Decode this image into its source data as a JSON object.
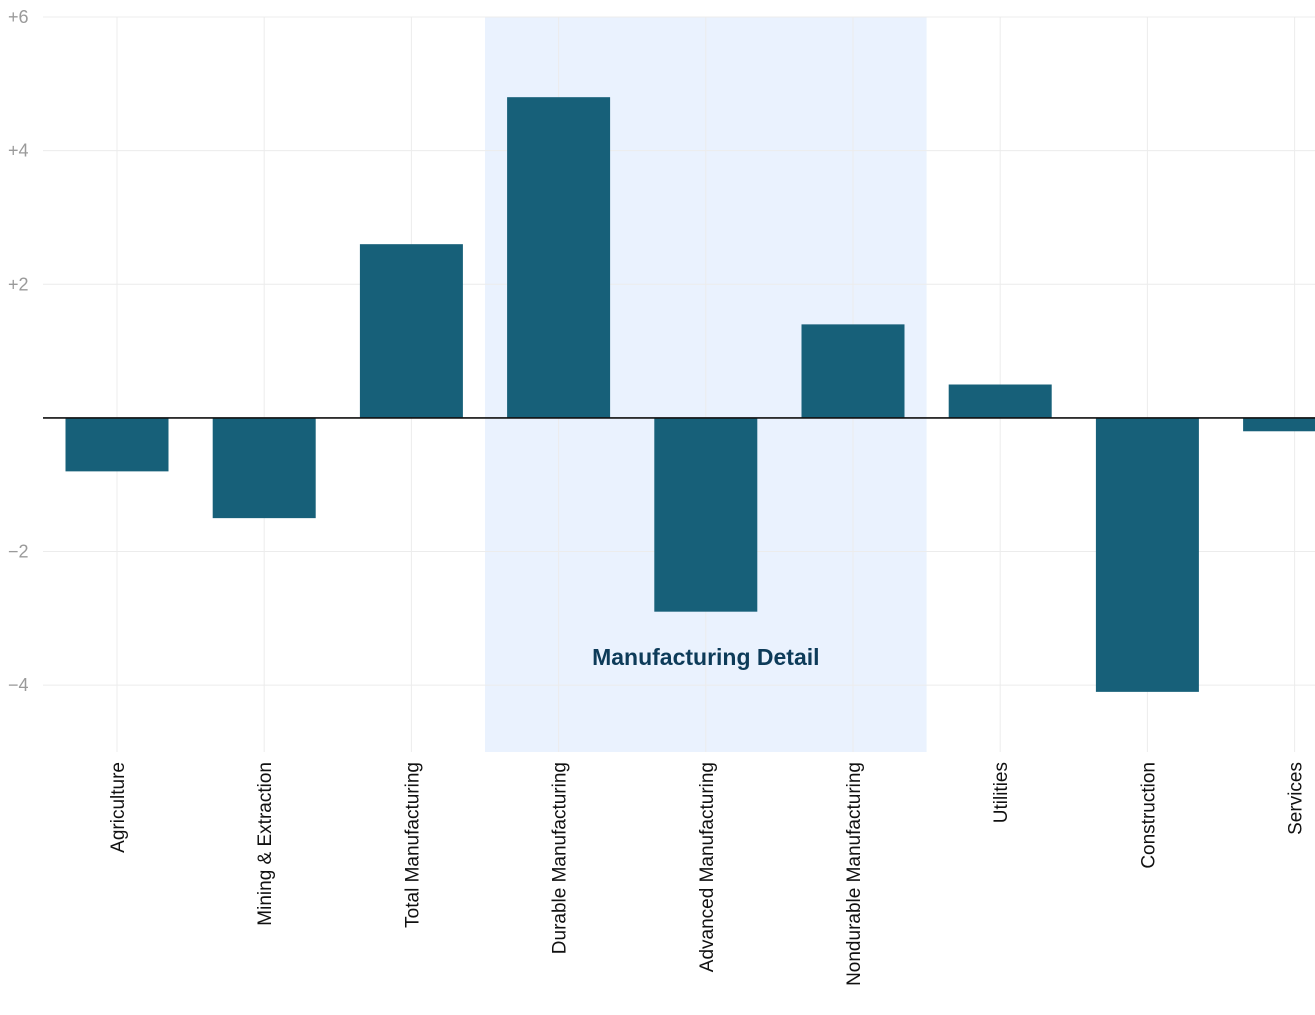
{
  "chart_data": {
    "type": "bar",
    "categories": [
      "Agriculture",
      "Mining & Extraction",
      "Total Manufacturing",
      "Durable Manufacturing",
      "Advanced Manufacturing",
      "Nondurable Manufacturing",
      "Utilities",
      "Construction",
      "Services"
    ],
    "values": [
      -0.8,
      -1.5,
      2.6,
      4.8,
      -2.9,
      1.4,
      0.5,
      -4.1,
      -0.2
    ],
    "ylim": [
      -5,
      6
    ],
    "yticks": [
      {
        "value": 6,
        "label": "+6"
      },
      {
        "value": 4,
        "label": "+4"
      },
      {
        "value": 2,
        "label": "+2"
      },
      {
        "value": -2,
        "label": "−2"
      },
      {
        "value": -4,
        "label": "−4"
      }
    ],
    "grid": true,
    "highlight": {
      "label": "Manufacturing Detail",
      "from_category": "Durable Manufacturing",
      "to_category": "Nondurable Manufacturing"
    },
    "colors": {
      "bar": "#176079",
      "highlight": "#eaf2fe",
      "grid": "#ececec",
      "zero_line": "#111111"
    }
  }
}
